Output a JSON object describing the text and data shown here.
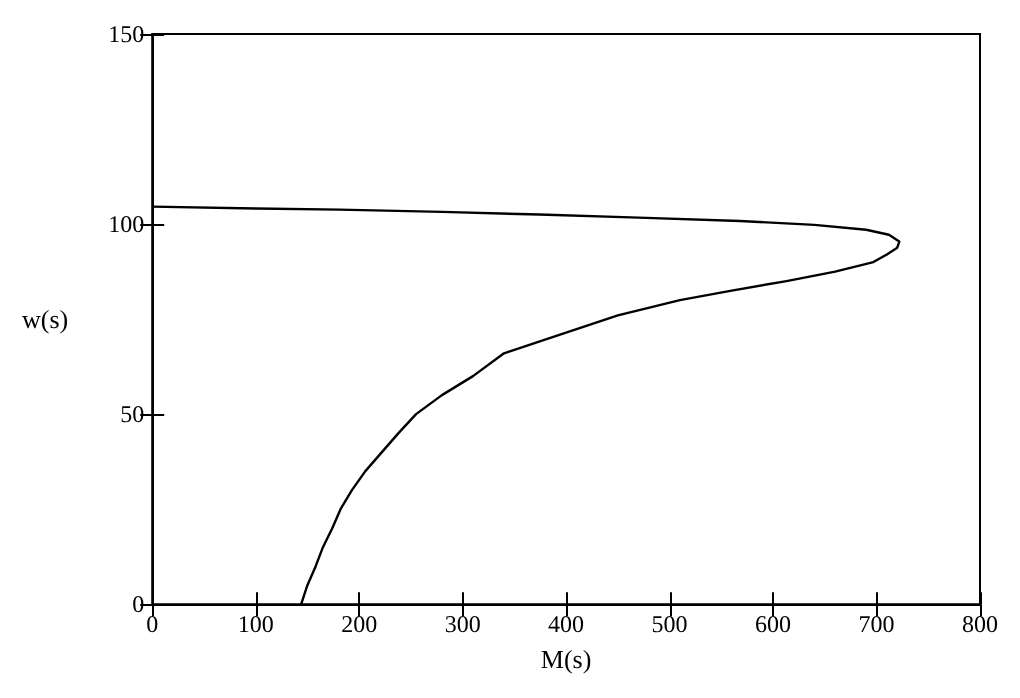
{
  "chart_data": {
    "type": "line",
    "xlabel": "M(s)",
    "ylabel": "w(s)",
    "series": [
      {
        "color": "#000000",
        "x": [
          0,
          100,
          181,
          280,
          374,
          470,
          568,
          640,
          690,
          712,
          722,
          720,
          710,
          697,
          660,
          613,
          560,
          510,
          450,
          384,
          340,
          310,
          280,
          255,
          238,
          222,
          206,
          193,
          182,
          174,
          165,
          158,
          150,
          144
        ],
        "values": [
          104.6,
          104.1,
          103.8,
          103.2,
          102.5,
          101.7,
          100.8,
          99.8,
          98.5,
          97.2,
          95.4,
          93.8,
          92,
          90,
          87.5,
          85,
          82.5,
          80,
          76,
          70,
          66,
          60,
          55,
          50,
          45,
          40,
          35,
          30,
          25,
          20,
          15,
          10,
          5,
          0
        ]
      }
    ],
    "xlim": [
      0,
      800
    ],
    "xticks": [
      0,
      100,
      200,
      300,
      400,
      500,
      600,
      700,
      800
    ],
    "ylim": [
      0,
      150
    ],
    "yticks": [
      0,
      50,
      100,
      150
    ],
    "grid": false,
    "marker": "none",
    "line_style": "solid"
  }
}
